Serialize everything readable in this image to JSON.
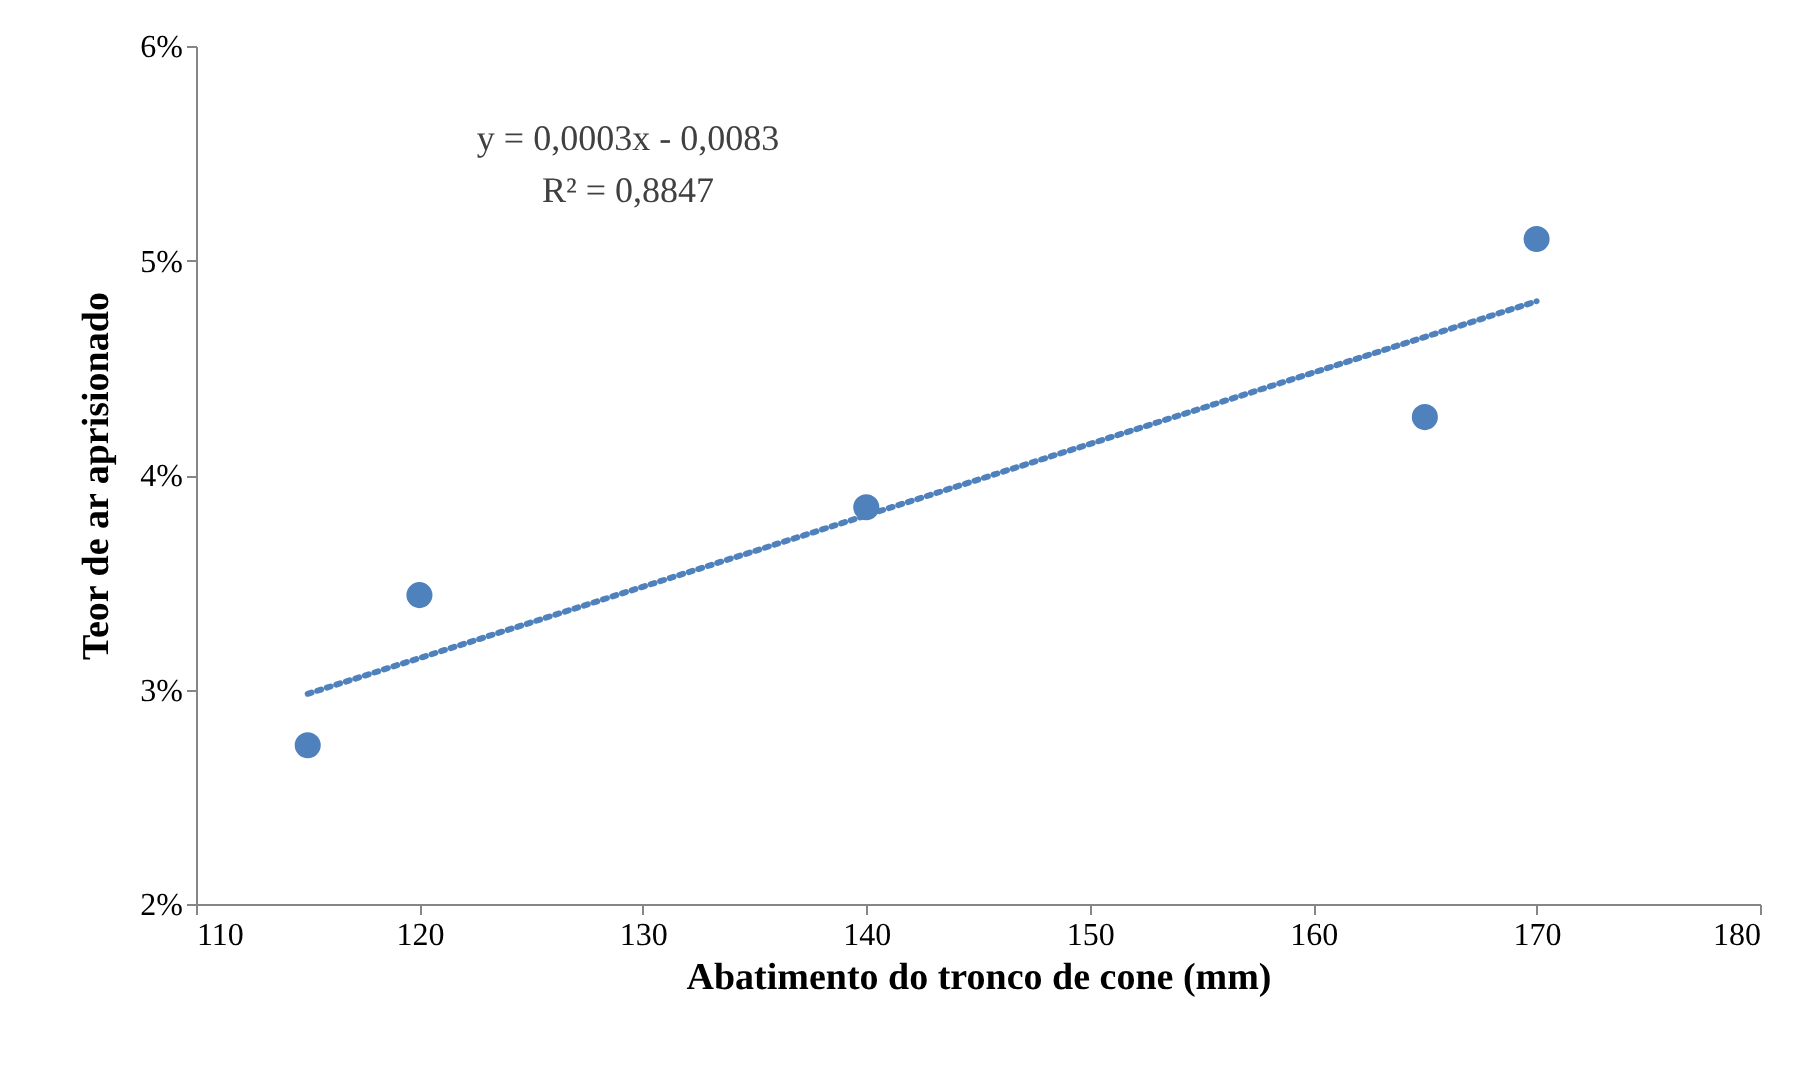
{
  "chart_data": {
    "type": "scatter",
    "xlabel": "Abatimento do tronco de cone (mm)",
    "ylabel": "Teor de ar aprisionado",
    "xlim": [
      110,
      180
    ],
    "xticks": [
      110,
      120,
      130,
      140,
      150,
      160,
      170,
      180
    ],
    "ylim": [
      2,
      6
    ],
    "yticks": [
      {
        "value": 2,
        "label": "2%"
      },
      {
        "value": 3,
        "label": "3%"
      },
      {
        "value": 4,
        "label": "4%"
      },
      {
        "value": 5,
        "label": "5%"
      },
      {
        "value": 6,
        "label": "6%"
      }
    ],
    "series": [
      {
        "color": "#4f81bd",
        "marker": "circle",
        "x": [
          115,
          120,
          140,
          165,
          170
        ],
        "values": [
          2.74,
          3.44,
          3.85,
          4.27,
          5.1
        ]
      },
      {
        "type": "line",
        "color": "#4f81bd",
        "marker": "none",
        "line_style": "dotted",
        "x": [
          115,
          170
        ],
        "values": [
          2.98,
          4.81
        ]
      }
    ],
    "annotations": [
      "y = 0,0003x - 0,0083",
      "R² = 0,8847"
    ],
    "grid": false,
    "legend": false
  }
}
